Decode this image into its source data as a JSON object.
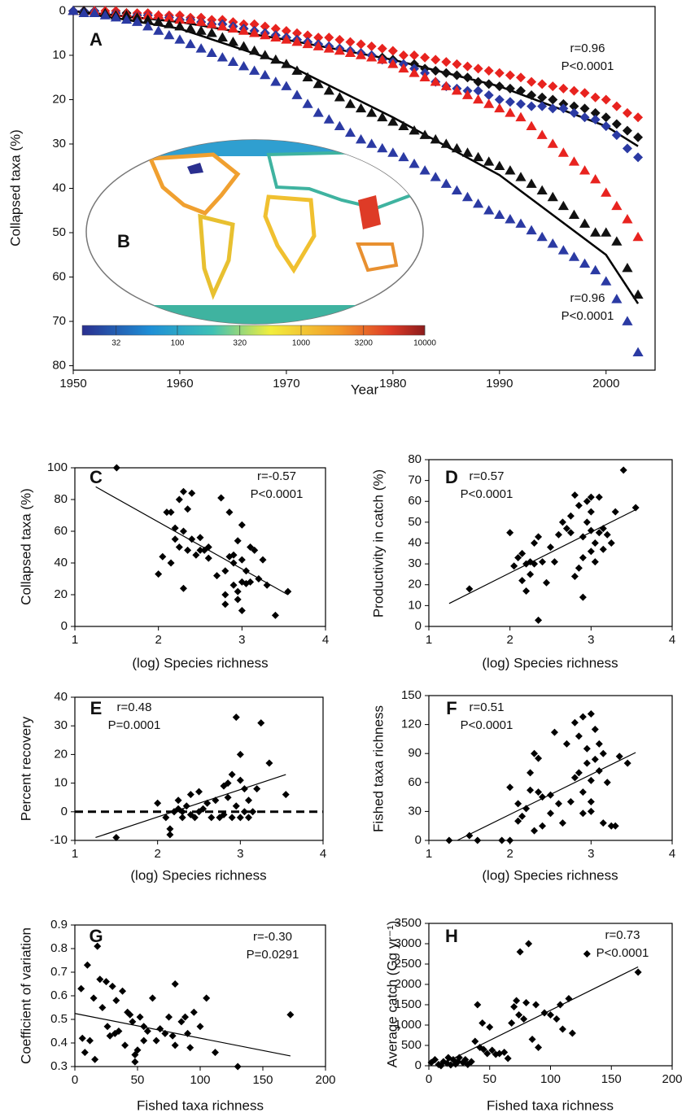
{
  "chart_data": [
    {
      "type": "scatter",
      "panel": "A",
      "inset_label": "B",
      "xlabel": "Year",
      "ylabel": "Collapsed taxa (%)",
      "xlim": [
        1950,
        2004.6
      ],
      "ylim": [
        -1,
        81
      ],
      "invert_y": true,
      "xticks": [
        1950,
        1960,
        1970,
        1980,
        1990,
        2000
      ],
      "yticks": [
        0,
        10,
        20,
        30,
        40,
        50,
        60,
        70,
        80
      ],
      "x": [
        1950,
        1951,
        1952,
        1953,
        1954,
        1955,
        1956,
        1957,
        1958,
        1959,
        1960,
        1961,
        1962,
        1963,
        1964,
        1965,
        1966,
        1967,
        1968,
        1969,
        1970,
        1971,
        1972,
        1973,
        1974,
        1975,
        1976,
        1977,
        1978,
        1979,
        1980,
        1981,
        1982,
        1983,
        1984,
        1985,
        1986,
        1987,
        1988,
        1989,
        1990,
        1991,
        1992,
        1993,
        1994,
        1995,
        1996,
        1997,
        1998,
        1999,
        2000,
        2001,
        2002,
        2003
      ],
      "series": [
        {
          "color": "#e8231f",
          "marker": "diamond",
          "values": [
            0,
            0,
            0,
            0,
            0,
            0.5,
            0.5,
            0.5,
            1,
            1,
            1,
            1.5,
            1.5,
            2,
            2,
            2.5,
            3,
            3,
            3.5,
            4,
            4.5,
            5,
            5.5,
            6,
            6,
            6.5,
            7,
            7.5,
            8,
            8.5,
            9,
            10,
            10,
            10.5,
            11,
            11.5,
            12,
            12.5,
            13,
            13.5,
            14,
            14.5,
            15,
            16,
            16.5,
            17,
            17.5,
            18,
            18.5,
            19.5,
            20,
            21.5,
            23,
            24
          ]
        },
        {
          "color": "#111111",
          "marker": "diamond",
          "values": [
            0,
            0,
            0,
            0.5,
            0.5,
            0.5,
            1,
            1,
            1.5,
            1.5,
            2,
            2,
            2.5,
            3,
            3,
            3.5,
            4,
            4.5,
            5,
            5.5,
            6,
            6.5,
            7,
            7.5,
            8,
            8.5,
            9,
            9.5,
            10,
            10.5,
            11,
            12,
            12,
            13,
            13.5,
            14,
            14.5,
            15,
            16,
            16.5,
            17,
            17.5,
            18,
            19,
            19.5,
            20,
            21,
            21.5,
            22,
            23,
            24,
            25.5,
            27,
            28.5
          ]
        },
        {
          "color": "#2b3aa3",
          "marker": "diamond",
          "values": [
            0,
            0,
            0,
            0.5,
            0.5,
            1,
            1,
            1,
            1.5,
            1.5,
            2,
            2,
            2.5,
            3,
            3,
            3.5,
            4,
            4.5,
            5,
            5.5,
            6,
            6.5,
            7,
            7.5,
            8,
            8.5,
            9,
            9.5,
            10,
            11,
            11.5,
            12,
            13,
            14,
            16,
            17,
            17.5,
            18,
            18,
            19,
            20,
            20.5,
            21,
            21.5,
            21.5,
            22,
            22,
            23,
            24,
            24.5,
            26,
            28,
            31,
            33
          ]
        },
        {
          "color": "#e8231f",
          "marker": "triangle",
          "values": [
            0,
            0,
            0,
            0,
            0.5,
            0.5,
            1,
            1,
            1,
            1.5,
            2,
            2,
            2.5,
            3,
            3.5,
            4,
            4.5,
            5,
            5.5,
            6,
            6.5,
            7,
            7.5,
            8,
            8.5,
            9,
            9.5,
            10,
            10.5,
            11,
            12,
            13,
            14,
            15,
            16,
            17,
            18,
            19,
            20,
            21,
            22,
            23,
            24,
            26,
            28,
            30,
            32,
            34,
            36,
            38,
            41,
            44,
            47,
            51
          ]
        },
        {
          "color": "#111111",
          "marker": "triangle",
          "values": [
            0,
            0,
            0.5,
            0.5,
            1,
            1,
            1.5,
            2,
            2.5,
            3,
            3.5,
            4,
            4.5,
            5,
            6,
            7,
            8,
            9,
            10,
            11,
            12,
            13.5,
            15,
            16.5,
            18,
            19.5,
            21,
            22,
            23,
            24,
            25,
            26,
            27,
            28,
            29,
            30,
            31,
            32,
            33,
            34,
            35,
            36,
            37.5,
            39,
            40.5,
            42,
            44,
            46,
            48,
            50,
            50,
            52,
            58,
            64
          ]
        },
        {
          "color": "#2b3aa3",
          "marker": "triangle",
          "values": [
            0,
            0.5,
            0.5,
            1,
            1.5,
            2,
            2.5,
            3.5,
            4.5,
            5.5,
            6.5,
            7.5,
            8.5,
            9.5,
            10.5,
            11.5,
            12.5,
            13.5,
            14.5,
            16,
            17,
            19,
            21,
            23,
            24.5,
            26,
            27.5,
            29,
            30,
            31,
            32,
            33,
            34.5,
            36,
            37.5,
            39,
            40.5,
            42,
            43.5,
            45,
            46,
            47,
            48,
            49.5,
            51,
            52.5,
            54,
            55.5,
            57,
            58.5,
            61,
            65,
            70,
            77
          ]
        }
      ],
      "fits": [
        {
          "x": [
            1950,
            1960,
            1970,
            1980,
            1990,
            2000,
            2003
          ],
          "values": [
            0,
            2.5,
            6.5,
            11,
            17,
            26,
            30.5
          ]
        },
        {
          "x": [
            1950,
            1960,
            1970,
            1980,
            1990,
            2000,
            2003
          ],
          "values": [
            0,
            4,
            12,
            24,
            37,
            55,
            66
          ]
        }
      ],
      "annotations": [
        "r=0.96",
        "P<0.0001",
        "r=0.96",
        "P<0.0001"
      ],
      "colorbar": {
        "scale": "log",
        "lim": [
          17,
          10000
        ],
        "ticks": [
          32,
          100,
          320,
          1000,
          3200,
          10000
        ]
      }
    },
    {
      "type": "scatter",
      "panel": "C",
      "xlabel": "(log) Species richness",
      "ylabel": "Collapsed taxa (%)",
      "xlim": [
        1,
        4
      ],
      "ylim": [
        0,
        100
      ],
      "xticks": [
        1,
        2,
        3,
        4
      ],
      "yticks": [
        0,
        20,
        40,
        60,
        80,
        100
      ],
      "color": "#000000",
      "marker": "diamond",
      "x": [
        1.5,
        2,
        2.05,
        2.1,
        2.15,
        2.15,
        2.2,
        2.2,
        2.25,
        2.25,
        2.3,
        2.3,
        2.3,
        2.35,
        2.35,
        2.4,
        2.4,
        2.45,
        2.5,
        2.5,
        2.55,
        2.6,
        2.6,
        2.7,
        2.75,
        2.8,
        2.8,
        2.8,
        2.85,
        2.85,
        2.9,
        2.9,
        2.9,
        2.95,
        2.95,
        2.95,
        3,
        3,
        3,
        3,
        3.05,
        3.05,
        3.1,
        3.1,
        3.15,
        3.2,
        3.25,
        3.3,
        3.4,
        3.55
      ],
      "values": [
        100,
        33,
        44,
        72,
        72,
        40,
        62,
        55,
        80,
        50,
        85,
        60,
        24,
        48,
        74,
        84,
        55,
        45,
        48,
        56,
        48,
        43,
        50,
        32,
        81,
        35,
        20,
        14,
        44,
        72,
        40,
        26,
        45,
        17,
        22,
        54,
        28,
        42,
        64,
        10,
        35,
        27,
        50,
        28,
        48,
        30,
        42,
        26,
        7,
        22
      ],
      "fit": {
        "x": [
          1.25,
          3.55
        ],
        "values": [
          88,
          20
        ]
      },
      "annotations": [
        "r=-0.57",
        "P<0.0001"
      ]
    },
    {
      "type": "scatter",
      "panel": "D",
      "xlabel": "(log) Species richness",
      "ylabel": "Productivity in catch (%)",
      "xlim": [
        1,
        4
      ],
      "ylim": [
        0,
        80
      ],
      "xticks": [
        1,
        2,
        3,
        4
      ],
      "yticks": [
        0,
        10,
        20,
        30,
        40,
        50,
        60,
        70,
        80
      ],
      "color": "#000000",
      "marker": "diamond",
      "x": [
        1.5,
        2,
        2.05,
        2.1,
        2.15,
        2.15,
        2.2,
        2.2,
        2.25,
        2.25,
        2.3,
        2.3,
        2.35,
        2.35,
        2.4,
        2.45,
        2.5,
        2.55,
        2.6,
        2.65,
        2.7,
        2.75,
        2.75,
        2.8,
        2.8,
        2.85,
        2.85,
        2.9,
        2.9,
        2.9,
        2.95,
        2.95,
        3,
        3,
        3,
        3,
        3.05,
        3.05,
        3.1,
        3.1,
        3.15,
        3.15,
        3.2,
        3.25,
        3.3,
        3.4,
        3.55
      ],
      "values": [
        18,
        45,
        29,
        33,
        22,
        35,
        30,
        17,
        25,
        31,
        30,
        40,
        43,
        3,
        31,
        21,
        38,
        31,
        44,
        50,
        47,
        45,
        53,
        63,
        24,
        58,
        28,
        43,
        33,
        14,
        60,
        50,
        46,
        36,
        62,
        55,
        40,
        31,
        62,
        45,
        37,
        47,
        44,
        40,
        55,
        75,
        57
      ],
      "fit": {
        "x": [
          1.25,
          3.55
        ],
        "values": [
          11,
          56
        ]
      },
      "annotations": [
        "r=0.57",
        "P<0.0001"
      ]
    },
    {
      "type": "scatter",
      "panel": "E",
      "xlabel": "(log) Species richness",
      "ylabel": "Percent recovery",
      "xlim": [
        1,
        4
      ],
      "ylim": [
        -10,
        40
      ],
      "xticks": [
        1,
        2,
        3,
        4
      ],
      "yticks": [
        -10,
        0,
        10,
        20,
        30,
        40
      ],
      "color": "#000000",
      "marker": "diamond",
      "hline": 0,
      "x": [
        1.5,
        2,
        2.1,
        2.15,
        2.15,
        2.2,
        2.2,
        2.25,
        2.25,
        2.3,
        2.3,
        2.35,
        2.4,
        2.4,
        2.45,
        2.5,
        2.5,
        2.55,
        2.6,
        2.65,
        2.7,
        2.75,
        2.8,
        2.8,
        2.85,
        2.85,
        2.9,
        2.9,
        2.95,
        2.95,
        3,
        3,
        3,
        3.05,
        3.05,
        3.1,
        3.1,
        3.15,
        3.2,
        3.25,
        3.35,
        3.55
      ],
      "values": [
        -9,
        3,
        -2,
        -6,
        -8,
        0,
        0,
        1,
        4,
        -2,
        0,
        2,
        6,
        -1,
        -2,
        7,
        0,
        1,
        3,
        -2,
        4,
        -2,
        9,
        -1,
        5,
        10,
        13,
        -2,
        33,
        2,
        20,
        -2,
        11,
        0,
        8,
        -2,
        4,
        0,
        8,
        31,
        17,
        6
      ],
      "fit": {
        "x": [
          1.25,
          3.55
        ],
        "values": [
          -9,
          13
        ]
      },
      "annotations": [
        "r=0.48",
        "P=0.0001"
      ]
    },
    {
      "type": "scatter",
      "panel": "F",
      "xlabel": "(log) Species richness",
      "ylabel": "Fished taxa richness",
      "xlim": [
        1,
        4
      ],
      "ylim": [
        0,
        150
      ],
      "xticks": [
        1,
        2,
        3,
        4
      ],
      "yticks": [
        0,
        30,
        60,
        90,
        120,
        150
      ],
      "color": "#000000",
      "marker": "diamond",
      "x": [
        1.25,
        1.5,
        1.6,
        1.9,
        2,
        2,
        2.1,
        2.1,
        2.15,
        2.2,
        2.25,
        2.25,
        2.3,
        2.3,
        2.35,
        2.35,
        2.4,
        2.4,
        2.5,
        2.5,
        2.55,
        2.6,
        2.65,
        2.7,
        2.75,
        2.8,
        2.8,
        2.85,
        2.85,
        2.9,
        2.9,
        2.9,
        2.95,
        2.95,
        3,
        3,
        3,
        3,
        3.05,
        3.05,
        3.1,
        3.1,
        3.15,
        3.15,
        3.2,
        3.25,
        3.3,
        3.35,
        3.45
      ],
      "values": [
        0,
        5,
        0,
        0,
        0,
        55,
        20,
        38,
        25,
        33,
        52,
        70,
        90,
        10,
        85,
        50,
        45,
        15,
        28,
        47,
        112,
        38,
        18,
        100,
        40,
        122,
        65,
        70,
        108,
        128,
        50,
        28,
        80,
        95,
        131,
        62,
        40,
        30,
        115,
        84,
        72,
        100,
        18,
        90,
        60,
        15,
        15,
        87,
        80
      ],
      "fit": {
        "x": [
          1.35,
          3.55
        ],
        "values": [
          0,
          91
        ]
      },
      "annotations": [
        "r=0.51",
        "P<0.0001"
      ]
    },
    {
      "type": "scatter",
      "panel": "G",
      "xlabel": "Fished taxa richness",
      "ylabel": "Coefficient of variation",
      "xlim": [
        0,
        200
      ],
      "ylim": [
        0.3,
        0.9
      ],
      "xticks": [
        0,
        50,
        100,
        150,
        200
      ],
      "yticks": [
        0.3,
        0.4,
        0.5,
        0.6,
        0.7,
        0.8,
        0.9
      ],
      "color": "#000000",
      "marker": "diamond",
      "x": [
        5,
        6,
        8,
        10,
        12,
        15,
        16,
        18,
        20,
        22,
        25,
        26,
        28,
        30,
        32,
        33,
        35,
        38,
        40,
        42,
        44,
        46,
        48,
        48,
        50,
        52,
        55,
        55,
        58,
        62,
        65,
        68,
        72,
        75,
        78,
        80,
        80,
        85,
        88,
        90,
        92,
        95,
        100,
        105,
        112,
        130,
        172
      ],
      "values": [
        0.63,
        0.42,
        0.36,
        0.73,
        0.41,
        0.59,
        0.33,
        0.81,
        0.67,
        0.55,
        0.66,
        0.47,
        0.43,
        0.64,
        0.44,
        0.58,
        0.45,
        0.62,
        0.39,
        0.53,
        0.52,
        0.49,
        0.35,
        0.32,
        0.37,
        0.51,
        0.47,
        0.41,
        0.45,
        0.59,
        0.41,
        0.46,
        0.44,
        0.51,
        0.43,
        0.65,
        0.39,
        0.49,
        0.51,
        0.44,
        0.38,
        0.53,
        0.47,
        0.59,
        0.36,
        0.3,
        0.52
      ],
      "fit": {
        "x": [
          0,
          172
        ],
        "values": [
          0.525,
          0.345
        ]
      },
      "annotations": [
        "r=-0.30",
        "P=0.0291"
      ]
    },
    {
      "type": "scatter",
      "panel": "H",
      "xlabel": "Fished taxa richness",
      "ylabel": "Average catch (Gg yr⁻¹)",
      "xlim": [
        0,
        200
      ],
      "ylim": [
        0,
        3500
      ],
      "xticks": [
        0,
        50,
        100,
        150,
        200
      ],
      "yticks": [
        0,
        500,
        1000,
        1500,
        2000,
        2500,
        3000,
        3500
      ],
      "color": "#000000",
      "marker": "diamond",
      "x": [
        2,
        5,
        8,
        10,
        12,
        15,
        16,
        18,
        20,
        22,
        24,
        25,
        28,
        30,
        32,
        35,
        38,
        40,
        42,
        44,
        45,
        48,
        50,
        52,
        55,
        58,
        62,
        65,
        68,
        70,
        72,
        74,
        75,
        78,
        80,
        82,
        85,
        88,
        90,
        95,
        100,
        105,
        108,
        110,
        115,
        118,
        130,
        172
      ],
      "values": [
        80,
        150,
        30,
        0,
        100,
        60,
        200,
        20,
        150,
        40,
        100,
        200,
        80,
        150,
        30,
        100,
        600,
        1500,
        450,
        1050,
        400,
        300,
        950,
        380,
        280,
        300,
        330,
        180,
        1050,
        1450,
        1600,
        1250,
        2800,
        1150,
        1550,
        3000,
        650,
        1500,
        450,
        1300,
        1250,
        1150,
        1500,
        900,
        1650,
        800,
        2750,
        2300
      ],
      "fit": {
        "x": [
          8,
          172
        ],
        "values": [
          0,
          2430
        ]
      },
      "annotations": [
        "r=0.73",
        "P<0.0001"
      ]
    }
  ]
}
